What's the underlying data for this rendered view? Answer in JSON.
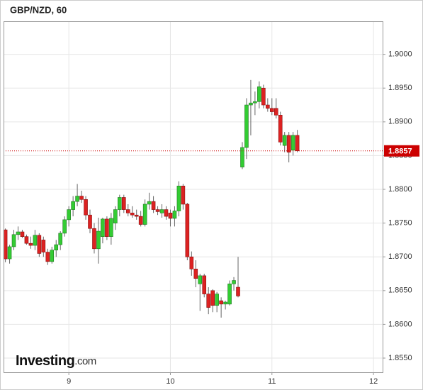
{
  "chart_data": {
    "type": "candlestick",
    "title": "GBP/NZD, 60",
    "x": [
      8.375,
      8.4167,
      8.4583,
      8.5,
      8.5417,
      8.5833,
      8.625,
      8.6667,
      8.7083,
      8.75,
      8.7917,
      8.8333,
      8.875,
      8.9167,
      8.9583,
      9,
      9.0417,
      9.0833,
      9.125,
      9.1667,
      9.2083,
      9.25,
      9.2917,
      9.3333,
      9.375,
      9.4167,
      9.4583,
      9.5,
      9.5417,
      9.5833,
      9.625,
      9.6667,
      9.7083,
      9.75,
      9.7917,
      9.8333,
      9.875,
      9.9167,
      9.9583,
      10,
      10.0417,
      10.0833,
      10.125,
      10.1667,
      10.2083,
      10.25,
      10.2917,
      10.3333,
      10.375,
      10.4167,
      10.4583,
      10.5,
      10.5417,
      10.5833,
      10.625,
      10.6667,
      10.7083,
      10.75,
      10.7917,
      10.8333,
      10.875,
      10.9167,
      10.9583,
      11,
      11.0417,
      11.0833,
      11.125,
      11.1667,
      11.2083,
      11.25
    ],
    "open": [
      1.874,
      1.8697,
      1.8715,
      1.8733,
      1.8737,
      1.873,
      1.872,
      1.8717,
      1.8732,
      1.8725,
      1.8707,
      1.8693,
      1.871,
      1.8718,
      1.8735,
      1.8755,
      1.877,
      1.8782,
      1.879,
      1.8785,
      1.8762,
      1.8742,
      1.8712,
      1.873,
      1.8756,
      1.873,
      1.875,
      1.877,
      1.8788,
      1.877,
      1.8765,
      1.8762,
      1.876,
      1.8748,
      1.8778,
      1.8782,
      1.877,
      1.8765,
      1.877,
      1.8765,
      1.8757,
      1.8768,
      1.8805,
      1.8778,
      1.87,
      1.8682,
      1.866,
      1.8672,
      1.8645,
      1.865,
      1.8628,
      1.8635,
      1.863,
      1.863,
      1.866,
      1.8655,
      1.8833,
      1.8862,
      1.8925,
      1.8928,
      1.893,
      1.895,
      1.8925,
      1.892,
      1.892,
      1.891,
      1.8865,
      1.888,
      1.8858,
      1.888
    ],
    "high": [
      1.8742,
      1.8718,
      1.874,
      1.8745,
      1.874,
      1.8733,
      1.873,
      1.874,
      1.8735,
      1.873,
      1.8712,
      1.8715,
      1.8725,
      1.8738,
      1.876,
      1.8775,
      1.879,
      1.8808,
      1.8798,
      1.879,
      1.877,
      1.875,
      1.8758,
      1.8758,
      1.876,
      1.8765,
      1.8775,
      1.8792,
      1.8792,
      1.8778,
      1.8775,
      1.877,
      1.8768,
      1.8785,
      1.8795,
      1.879,
      1.8775,
      1.8778,
      1.8775,
      1.877,
      1.8775,
      1.8812,
      1.8808,
      1.878,
      1.8708,
      1.8695,
      1.8675,
      1.8675,
      1.8655,
      1.8652,
      1.8648,
      1.864,
      1.8635,
      1.8665,
      1.867,
      1.87,
      1.887,
      1.8935,
      1.8962,
      1.8945,
      1.896,
      1.8955,
      1.8935,
      1.8935,
      1.8935,
      1.8915,
      1.8885,
      1.8885,
      1.8885,
      1.8888
    ],
    "low": [
      1.8692,
      1.869,
      1.871,
      1.8725,
      1.8728,
      1.8718,
      1.8712,
      1.871,
      1.87,
      1.87,
      1.8688,
      1.869,
      1.87,
      1.871,
      1.873,
      1.8745,
      1.876,
      1.8775,
      1.878,
      1.8755,
      1.8735,
      1.8705,
      1.869,
      1.872,
      1.8725,
      1.8718,
      1.874,
      1.876,
      1.8765,
      1.876,
      1.8758,
      1.8755,
      1.8745,
      1.8745,
      1.877,
      1.8765,
      1.8762,
      1.8758,
      1.8755,
      1.8745,
      1.8745,
      1.876,
      1.877,
      1.8695,
      1.8672,
      1.8655,
      1.862,
      1.864,
      1.8615,
      1.8618,
      1.8618,
      1.861,
      1.8622,
      1.8628,
      1.865,
      1.864,
      1.883,
      1.8845,
      1.888,
      1.891,
      1.892,
      1.892,
      1.8915,
      1.891,
      1.8905,
      1.8865,
      1.8855,
      1.884,
      1.885,
      1.8855
    ],
    "close": [
      1.8697,
      1.8715,
      1.8733,
      1.8737,
      1.873,
      1.872,
      1.8717,
      1.8732,
      1.8705,
      1.8707,
      1.8693,
      1.871,
      1.8718,
      1.8735,
      1.8755,
      1.877,
      1.8782,
      1.879,
      1.8785,
      1.8762,
      1.8742,
      1.8712,
      1.8738,
      1.8756,
      1.873,
      1.8757,
      1.877,
      1.8788,
      1.877,
      1.8765,
      1.8762,
      1.876,
      1.8748,
      1.8778,
      1.8782,
      1.877,
      1.8767,
      1.877,
      1.876,
      1.8757,
      1.8768,
      1.8805,
      1.8778,
      1.87,
      1.8682,
      1.8668,
      1.8672,
      1.8645,
      1.8625,
      1.8628,
      1.8645,
      1.863,
      1.8633,
      1.866,
      1.8665,
      1.8642,
      1.8862,
      1.8925,
      1.8928,
      1.893,
      1.8952,
      1.8925,
      1.892,
      1.8915,
      1.891,
      1.887,
      1.888,
      1.8855,
      1.888,
      1.8857
    ],
    "up_color": "#33cc33",
    "down_color": "#dd2222",
    "last_price": 1.8857,
    "last_price_color": "#cc0000",
    "xlim": [
      8.357,
      12.09
    ],
    "xticks": [
      9,
      10,
      11,
      12
    ],
    "ylim": [
      1.8529,
      1.9049
    ],
    "yticks": [
      {
        "value": 1.855,
        "label": "1.8550"
      },
      {
        "value": 1.86,
        "label": "1.8600"
      },
      {
        "value": 1.865,
        "label": "1.8650"
      },
      {
        "value": 1.87,
        "label": "1.8700"
      },
      {
        "value": 1.875,
        "label": "1.8750"
      },
      {
        "value": 1.88,
        "label": "1.8800"
      },
      {
        "value": 1.885,
        "label": "1.8850"
      },
      {
        "value": 1.89,
        "label": "1.8900"
      },
      {
        "value": 1.895,
        "label": "1.8950"
      },
      {
        "value": 1.9,
        "label": "1.9000"
      }
    ],
    "grid": true
  },
  "logo": {
    "name": "Investing",
    "suffix": ".com"
  }
}
